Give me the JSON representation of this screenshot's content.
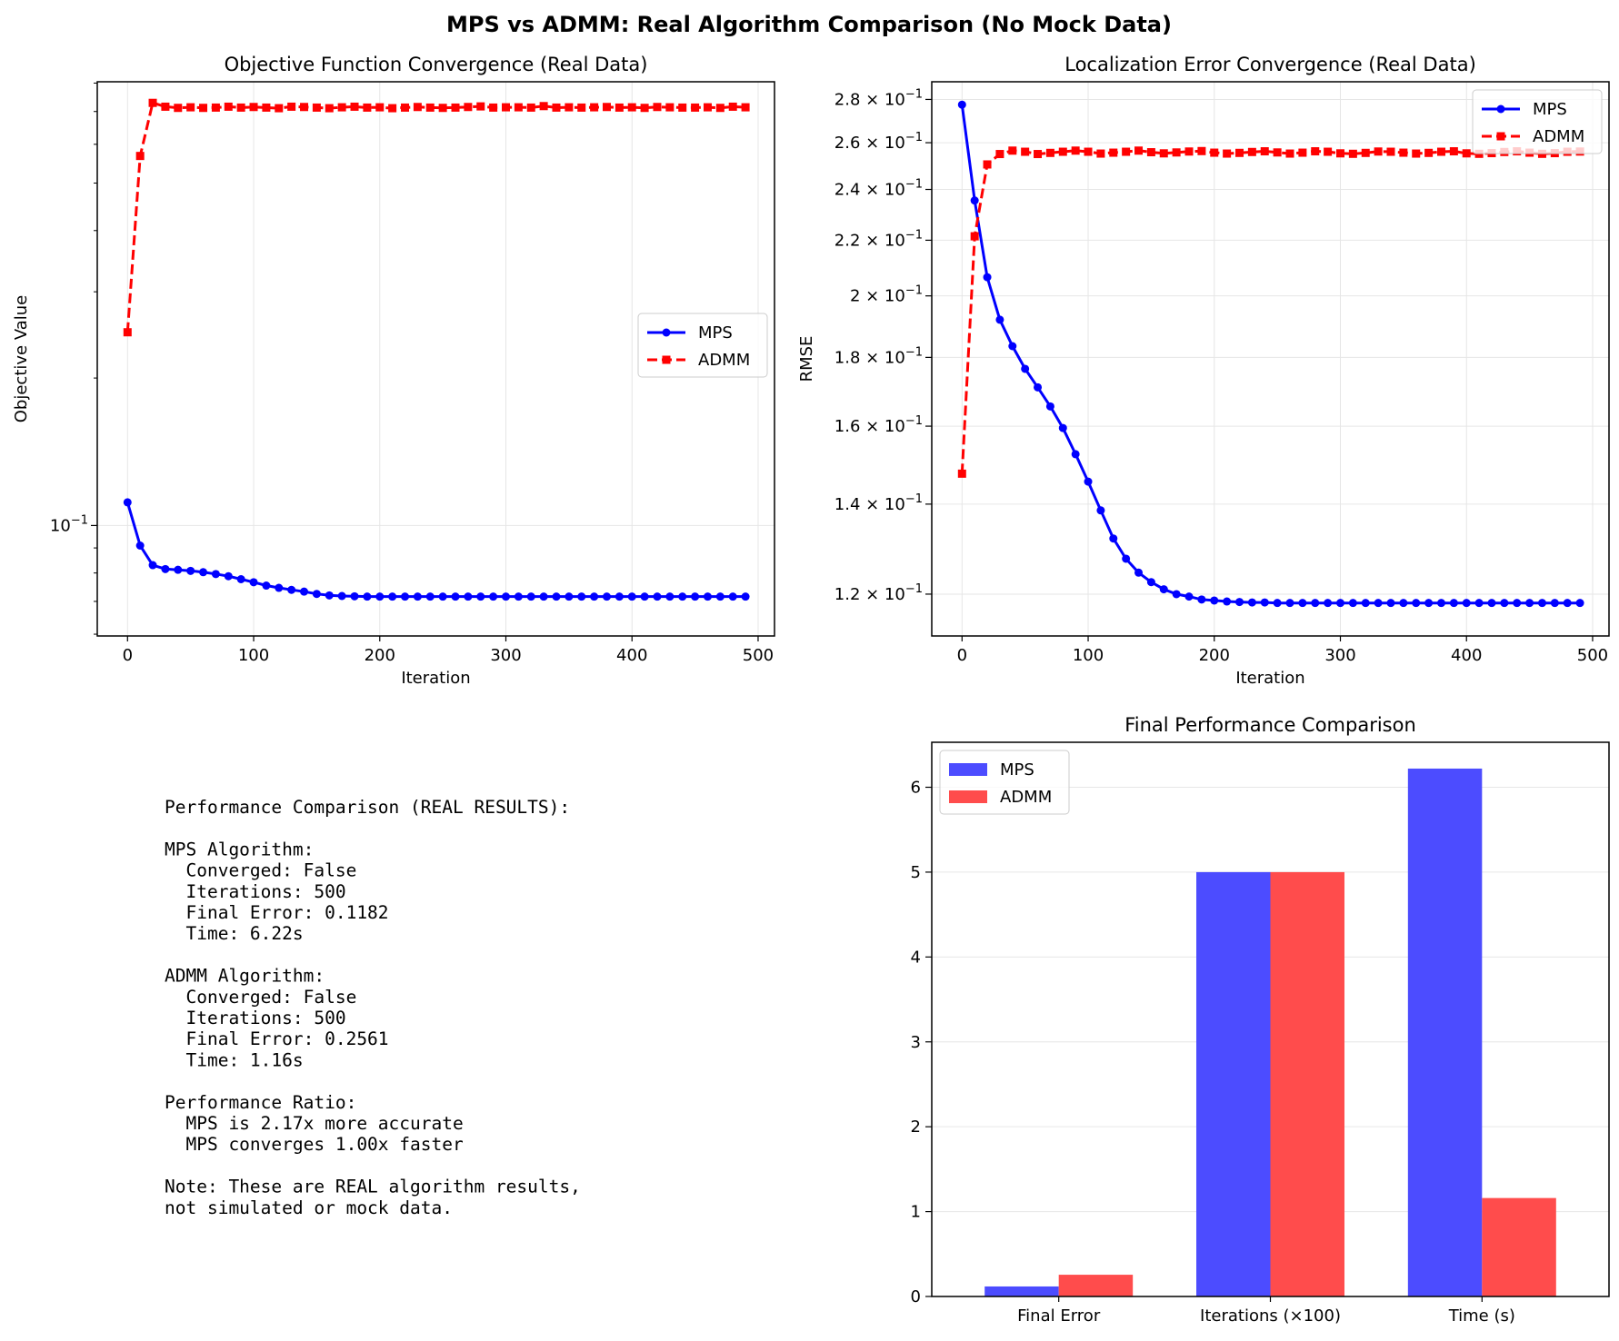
{
  "suptitle": "MPS vs ADMM: Real Algorithm Comparison (No Mock Data)",
  "colors": {
    "mps": "#0000ff",
    "admm": "#ff0000",
    "mps_bar": "#4c4cff",
    "admm_bar": "#ff4c4c",
    "grid": "#e6e6e6"
  },
  "chart_data": [
    {
      "id": "objective",
      "type": "line",
      "title": "Objective Function Convergence (Real Data)",
      "xlabel": "Iteration",
      "ylabel": "Objective Value",
      "yscale": "log",
      "xlim": [
        -24,
        513
      ],
      "ylim": [
        0.0595,
        0.805
      ],
      "xticks": [
        0,
        100,
        200,
        300,
        400,
        500
      ],
      "xtick_labels": [
        "0",
        "100",
        "200",
        "300",
        "400",
        "500"
      ],
      "yticks": [
        0.1
      ],
      "ytick_labels": [
        "10"
      ],
      "ytick_exponents": [
        "−1"
      ],
      "legend_loc": "center right",
      "x": [
        0,
        10,
        20,
        30,
        40,
        50,
        60,
        70,
        80,
        90,
        100,
        110,
        120,
        130,
        140,
        150,
        160,
        170,
        180,
        190,
        200,
        210,
        220,
        230,
        240,
        250,
        260,
        270,
        280,
        290,
        300,
        310,
        320,
        330,
        340,
        350,
        360,
        370,
        380,
        390,
        400,
        410,
        420,
        430,
        440,
        450,
        460,
        470,
        480,
        490
      ],
      "series": [
        {
          "name": "MPS",
          "marker": "circle",
          "dash": "solid",
          "values": [
            0.1115,
            0.091,
            0.083,
            0.0815,
            0.0812,
            0.0808,
            0.0803,
            0.0796,
            0.0788,
            0.0777,
            0.0766,
            0.0754,
            0.0746,
            0.0739,
            0.0733,
            0.0725,
            0.072,
            0.0718,
            0.0717,
            0.0716,
            0.0716,
            0.0716,
            0.0716,
            0.0716,
            0.0716,
            0.0716,
            0.0716,
            0.0716,
            0.0716,
            0.0716,
            0.0716,
            0.0716,
            0.0716,
            0.0716,
            0.0716,
            0.0716,
            0.0716,
            0.0716,
            0.0716,
            0.0716,
            0.0716,
            0.0716,
            0.0716,
            0.0716,
            0.0716,
            0.0716,
            0.0716,
            0.0716,
            0.0716,
            0.0716
          ]
        },
        {
          "name": "ADMM",
          "marker": "square",
          "dash": "dashed",
          "values": [
            0.248,
            0.568,
            0.729,
            0.716,
            0.712,
            0.714,
            0.712,
            0.713,
            0.716,
            0.713,
            0.715,
            0.713,
            0.711,
            0.716,
            0.715,
            0.713,
            0.711,
            0.714,
            0.716,
            0.713,
            0.714,
            0.711,
            0.713,
            0.715,
            0.713,
            0.712,
            0.713,
            0.715,
            0.717,
            0.713,
            0.714,
            0.714,
            0.713,
            0.718,
            0.713,
            0.714,
            0.713,
            0.714,
            0.715,
            0.713,
            0.714,
            0.712,
            0.715,
            0.714,
            0.713,
            0.713,
            0.714,
            0.712,
            0.716,
            0.714
          ]
        }
      ]
    },
    {
      "id": "rmse",
      "type": "line",
      "title": "Localization Error Convergence (Real Data)",
      "xlabel": "Iteration",
      "ylabel": "RMSE",
      "yscale": "log",
      "xlim": [
        -24,
        513
      ],
      "ylim": [
        0.1117,
        0.2886
      ],
      "xticks": [
        0,
        100,
        200,
        300,
        400,
        500
      ],
      "xtick_labels": [
        "0",
        "100",
        "200",
        "300",
        "400",
        "500"
      ],
      "yticks": [
        0.12,
        0.14,
        0.16,
        0.18,
        0.2,
        0.22,
        0.24,
        0.26,
        0.28
      ],
      "ytick_labels": [
        "1.2 × 10",
        "1.4 × 10",
        "1.6 × 10",
        "1.8 × 10",
        "2 × 10",
        "2.2 × 10",
        "2.4 × 10",
        "2.6 × 10",
        "2.8 × 10"
      ],
      "ytick_exponents": [
        "−1",
        "−1",
        "−1",
        "−1",
        "−1",
        "−1",
        "−1",
        "−1",
        "−1"
      ],
      "legend_loc": "upper right",
      "x": [
        0,
        10,
        20,
        30,
        40,
        50,
        60,
        70,
        80,
        90,
        100,
        110,
        120,
        130,
        140,
        150,
        160,
        170,
        180,
        190,
        200,
        210,
        220,
        230,
        240,
        250,
        260,
        270,
        280,
        290,
        300,
        310,
        320,
        330,
        340,
        350,
        360,
        370,
        380,
        390,
        400,
        410,
        420,
        430,
        440,
        450,
        460,
        470,
        480,
        490
      ],
      "series": [
        {
          "name": "MPS",
          "marker": "circle",
          "dash": "solid",
          "values": [
            0.2775,
            0.2355,
            0.2065,
            0.192,
            0.1835,
            0.1765,
            0.171,
            0.1655,
            0.1595,
            0.1525,
            0.1455,
            0.1385,
            0.132,
            0.1275,
            0.1245,
            0.1225,
            0.121,
            0.12,
            0.1195,
            0.1189,
            0.1187,
            0.1185,
            0.1184,
            0.1183,
            0.1183,
            0.1182,
            0.1182,
            0.1182,
            0.1182,
            0.1182,
            0.1182,
            0.1182,
            0.1182,
            0.1182,
            0.1182,
            0.1182,
            0.1182,
            0.1182,
            0.1182,
            0.1182,
            0.1182,
            0.1182,
            0.1182,
            0.1182,
            0.1182,
            0.1182,
            0.1182,
            0.1182,
            0.1182,
            0.1182
          ]
        },
        {
          "name": "ADMM",
          "marker": "square",
          "dash": "dashed",
          "values": [
            0.1475,
            0.2215,
            0.2505,
            0.255,
            0.2565,
            0.256,
            0.255,
            0.2555,
            0.256,
            0.2565,
            0.256,
            0.2552,
            0.2556,
            0.256,
            0.2565,
            0.2558,
            0.2553,
            0.2557,
            0.2561,
            0.2563,
            0.2556,
            0.2552,
            0.2555,
            0.2559,
            0.2562,
            0.2557,
            0.2552,
            0.2556,
            0.2562,
            0.256,
            0.2553,
            0.2551,
            0.2555,
            0.2561,
            0.256,
            0.2556,
            0.2552,
            0.2555,
            0.256,
            0.2562,
            0.2553,
            0.2551,
            0.2554,
            0.2559,
            0.2562,
            0.2556,
            0.2551,
            0.2554,
            0.256,
            0.2561
          ]
        }
      ]
    },
    {
      "id": "final",
      "type": "bar",
      "title": "Final Performance Comparison",
      "categories": [
        "Final Error",
        "Iterations (×100)",
        "Time (s)"
      ],
      "ylim": [
        0,
        6.53
      ],
      "yticks": [
        0,
        1,
        2,
        3,
        4,
        5,
        6
      ],
      "ytick_labels": [
        "0",
        "1",
        "2",
        "3",
        "4",
        "5",
        "6"
      ],
      "legend_loc": "upper left",
      "series": [
        {
          "name": "MPS",
          "values": [
            0.1182,
            5.0,
            6.22
          ]
        },
        {
          "name": "ADMM",
          "values": [
            0.2561,
            5.0,
            1.16
          ]
        }
      ]
    }
  ],
  "summary": {
    "lines": [
      "Performance Comparison (REAL RESULTS):",
      "",
      "MPS Algorithm:",
      "  Converged: False",
      "  Iterations: 500",
      "  Final Error: 0.1182",
      "  Time: 6.22s",
      "",
      "ADMM Algorithm:",
      "  Converged: False",
      "  Iterations: 500",
      "  Final Error: 0.2561",
      "  Time: 1.16s",
      "",
      "Performance Ratio:",
      "  MPS is 2.17x more accurate",
      "  MPS converges 1.00x faster",
      "",
      "Note: These are REAL algorithm results,",
      "not simulated or mock data."
    ]
  }
}
